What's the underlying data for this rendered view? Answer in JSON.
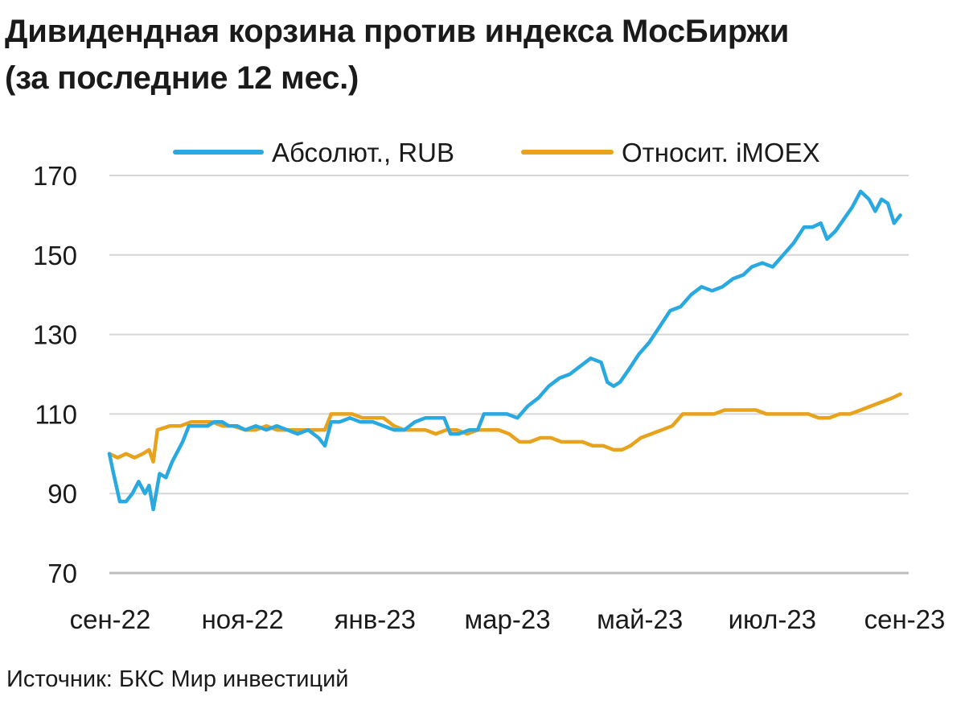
{
  "title": {
    "line1": "Дивидендная корзина против индекса МосБиржи",
    "line2": "(за последние 12 мес.)"
  },
  "source": "Источник: БКС Мир инвестиций",
  "chart_data": {
    "type": "line",
    "ylim": [
      70,
      170
    ],
    "yticks": [
      170,
      150,
      130,
      110,
      90,
      70
    ],
    "xticks": [
      "сен-22",
      "ноя-22",
      "янв-23",
      "мар-23",
      "май-23",
      "июл-23",
      "сен-23"
    ],
    "grid": true,
    "legend_position": "top",
    "series": [
      {
        "name": "Абсолют., RUB",
        "color": "#29a9e0",
        "points": [
          [
            "2022-09-01",
            100
          ],
          [
            "2022-09-03",
            95
          ],
          [
            "2022-09-06",
            88
          ],
          [
            "2022-09-09",
            88
          ],
          [
            "2022-09-12",
            90
          ],
          [
            "2022-09-15",
            93
          ],
          [
            "2022-09-18",
            90
          ],
          [
            "2022-09-20",
            92
          ],
          [
            "2022-09-22",
            86
          ],
          [
            "2022-09-25",
            95
          ],
          [
            "2022-09-28",
            94
          ],
          [
            "2022-10-01",
            98
          ],
          [
            "2022-10-03",
            100
          ],
          [
            "2022-10-06",
            103
          ],
          [
            "2022-10-09",
            107
          ],
          [
            "2022-10-12",
            107
          ],
          [
            "2022-10-15",
            107
          ],
          [
            "2022-10-18",
            107
          ],
          [
            "2022-10-21",
            108
          ],
          [
            "2022-10-25",
            108
          ],
          [
            "2022-10-28",
            107
          ],
          [
            "2022-11-01",
            107
          ],
          [
            "2022-11-05",
            106
          ],
          [
            "2022-11-10",
            107
          ],
          [
            "2022-11-15",
            106
          ],
          [
            "2022-11-20",
            107
          ],
          [
            "2022-11-25",
            106
          ],
          [
            "2022-11-30",
            105
          ],
          [
            "2022-12-05",
            106
          ],
          [
            "2022-12-10",
            104
          ],
          [
            "2022-12-13",
            102
          ],
          [
            "2022-12-16",
            108
          ],
          [
            "2022-12-20",
            108
          ],
          [
            "2022-12-25",
            109
          ],
          [
            "2022-12-30",
            108
          ],
          [
            "2023-01-05",
            108
          ],
          [
            "2023-01-10",
            107
          ],
          [
            "2023-01-15",
            106
          ],
          [
            "2023-01-20",
            106
          ],
          [
            "2023-01-25",
            108
          ],
          [
            "2023-01-30",
            109
          ],
          [
            "2023-02-04",
            109
          ],
          [
            "2023-02-08",
            109
          ],
          [
            "2023-02-11",
            105
          ],
          [
            "2023-02-15",
            105
          ],
          [
            "2023-02-20",
            106
          ],
          [
            "2023-02-24",
            106
          ],
          [
            "2023-02-27",
            110
          ],
          [
            "2023-03-05",
            110
          ],
          [
            "2023-03-10",
            110
          ],
          [
            "2023-03-15",
            109
          ],
          [
            "2023-03-20",
            112
          ],
          [
            "2023-03-25",
            114
          ],
          [
            "2023-03-30",
            117
          ],
          [
            "2023-04-04",
            119
          ],
          [
            "2023-04-09",
            120
          ],
          [
            "2023-04-14",
            122
          ],
          [
            "2023-04-19",
            124
          ],
          [
            "2023-04-24",
            123
          ],
          [
            "2023-04-27",
            118
          ],
          [
            "2023-04-30",
            117
          ],
          [
            "2023-05-03",
            118
          ],
          [
            "2023-05-07",
            121
          ],
          [
            "2023-05-12",
            125
          ],
          [
            "2023-05-17",
            128
          ],
          [
            "2023-05-22",
            132
          ],
          [
            "2023-05-27",
            136
          ],
          [
            "2023-06-01",
            137
          ],
          [
            "2023-06-06",
            140
          ],
          [
            "2023-06-11",
            142
          ],
          [
            "2023-06-16",
            141
          ],
          [
            "2023-06-21",
            142
          ],
          [
            "2023-06-26",
            144
          ],
          [
            "2023-07-01",
            145
          ],
          [
            "2023-07-05",
            147
          ],
          [
            "2023-07-10",
            148
          ],
          [
            "2023-07-15",
            147
          ],
          [
            "2023-07-20",
            150
          ],
          [
            "2023-07-25",
            153
          ],
          [
            "2023-07-30",
            157
          ],
          [
            "2023-08-03",
            157
          ],
          [
            "2023-08-07",
            158
          ],
          [
            "2023-08-10",
            154
          ],
          [
            "2023-08-14",
            156
          ],
          [
            "2023-08-18",
            159
          ],
          [
            "2023-08-22",
            162
          ],
          [
            "2023-08-26",
            166
          ],
          [
            "2023-08-30",
            164
          ],
          [
            "2023-09-02",
            161
          ],
          [
            "2023-09-05",
            164
          ],
          [
            "2023-09-08",
            163
          ],
          [
            "2023-09-11",
            158
          ],
          [
            "2023-09-14",
            160
          ]
        ]
      },
      {
        "name": "Относит. iMOEX",
        "color": "#e8a31e",
        "points": [
          [
            "2022-09-01",
            100
          ],
          [
            "2022-09-05",
            99
          ],
          [
            "2022-09-09",
            100
          ],
          [
            "2022-09-13",
            99
          ],
          [
            "2022-09-17",
            100
          ],
          [
            "2022-09-20",
            101
          ],
          [
            "2022-09-22",
            98
          ],
          [
            "2022-09-24",
            106
          ],
          [
            "2022-09-30",
            107
          ],
          [
            "2022-10-05",
            107
          ],
          [
            "2022-10-10",
            108
          ],
          [
            "2022-10-15",
            108
          ],
          [
            "2022-10-20",
            108
          ],
          [
            "2022-10-25",
            107
          ],
          [
            "2022-10-30",
            107
          ],
          [
            "2022-11-05",
            106
          ],
          [
            "2022-11-10",
            106
          ],
          [
            "2022-11-15",
            107
          ],
          [
            "2022-11-20",
            106
          ],
          [
            "2022-11-25",
            106
          ],
          [
            "2022-11-30",
            106
          ],
          [
            "2022-12-05",
            106
          ],
          [
            "2022-12-10",
            106
          ],
          [
            "2022-12-13",
            106
          ],
          [
            "2022-12-16",
            110
          ],
          [
            "2022-12-21",
            110
          ],
          [
            "2022-12-26",
            110
          ],
          [
            "2022-12-31",
            109
          ],
          [
            "2023-01-05",
            109
          ],
          [
            "2023-01-10",
            109
          ],
          [
            "2023-01-15",
            107
          ],
          [
            "2023-01-20",
            106
          ],
          [
            "2023-01-25",
            106
          ],
          [
            "2023-01-30",
            106
          ],
          [
            "2023-02-04",
            105
          ],
          [
            "2023-02-09",
            106
          ],
          [
            "2023-02-14",
            106
          ],
          [
            "2023-02-19",
            105
          ],
          [
            "2023-02-24",
            106
          ],
          [
            "2023-03-01",
            106
          ],
          [
            "2023-03-06",
            106
          ],
          [
            "2023-03-11",
            105
          ],
          [
            "2023-03-16",
            103
          ],
          [
            "2023-03-21",
            103
          ],
          [
            "2023-03-26",
            104
          ],
          [
            "2023-03-31",
            104
          ],
          [
            "2023-04-05",
            103
          ],
          [
            "2023-04-10",
            103
          ],
          [
            "2023-04-15",
            103
          ],
          [
            "2023-04-20",
            102
          ],
          [
            "2023-04-25",
            102
          ],
          [
            "2023-04-30",
            101
          ],
          [
            "2023-05-04",
            101
          ],
          [
            "2023-05-08",
            102
          ],
          [
            "2023-05-13",
            104
          ],
          [
            "2023-05-18",
            105
          ],
          [
            "2023-05-23",
            106
          ],
          [
            "2023-05-28",
            107
          ],
          [
            "2023-06-02",
            110
          ],
          [
            "2023-06-07",
            110
          ],
          [
            "2023-06-12",
            110
          ],
          [
            "2023-06-17",
            110
          ],
          [
            "2023-06-22",
            111
          ],
          [
            "2023-06-27",
            111
          ],
          [
            "2023-07-02",
            111
          ],
          [
            "2023-07-07",
            111
          ],
          [
            "2023-07-12",
            110
          ],
          [
            "2023-07-17",
            110
          ],
          [
            "2023-07-22",
            110
          ],
          [
            "2023-07-27",
            110
          ],
          [
            "2023-08-01",
            110
          ],
          [
            "2023-08-06",
            109
          ],
          [
            "2023-08-11",
            109
          ],
          [
            "2023-08-16",
            110
          ],
          [
            "2023-08-21",
            110
          ],
          [
            "2023-08-26",
            111
          ],
          [
            "2023-08-31",
            112
          ],
          [
            "2023-09-05",
            113
          ],
          [
            "2023-09-10",
            114
          ],
          [
            "2023-09-14",
            115
          ]
        ]
      }
    ]
  }
}
